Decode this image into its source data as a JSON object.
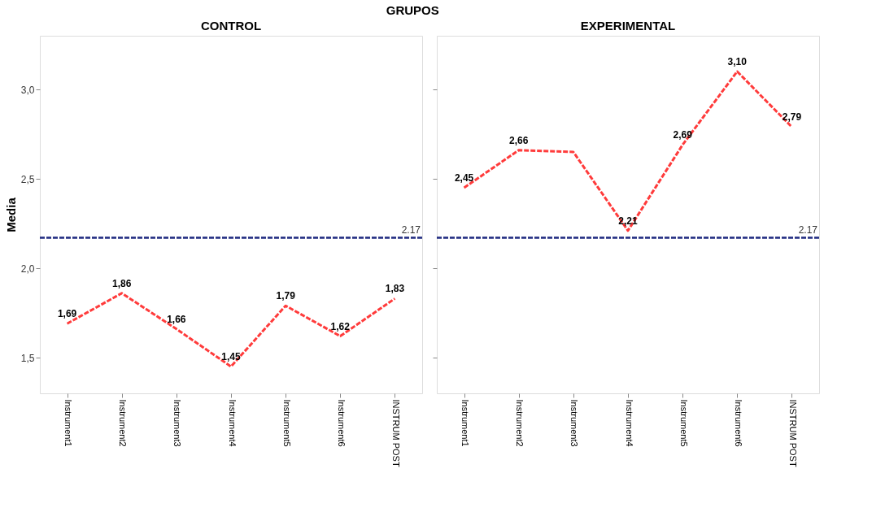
{
  "chart_data": [
    {
      "type": "line",
      "title": "CONTROL",
      "annotations": [
        "GRUPOS"
      ],
      "ylabel": "Media",
      "categories": [
        "Instrument1",
        "Instrument2",
        "Instrument3",
        "Instrument4",
        "Instrument5",
        "Instrument6",
        "INSTRUM POST"
      ],
      "series": [
        {
          "color": "#ff3b3b",
          "values": [
            1.69,
            1.86,
            1.66,
            1.45,
            1.79,
            1.62,
            1.83
          ],
          "value_labels": [
            "1,69",
            "1,86",
            "1,66",
            "1,45",
            "1,79",
            "1,62",
            "1,83"
          ]
        }
      ],
      "ylim": [
        1.3,
        3.3
      ],
      "yticks": [
        {
          "value": 1.5,
          "label": "1,5"
        },
        {
          "value": 2.0,
          "label": "2,0"
        },
        {
          "value": 2.5,
          "label": "2,5"
        },
        {
          "value": 3.0,
          "label": "3,0"
        }
      ],
      "ref_lines": [
        {
          "axis": "y",
          "value": 2.17,
          "label": "2.17",
          "color": "#1f2a80",
          "line_style": "dashed"
        }
      ],
      "grid": false,
      "marker": "none",
      "line_style": "dashed"
    },
    {
      "type": "line",
      "title": "EXPERIMENTAL",
      "categories": [
        "Instrument1",
        "Instrument2",
        "Instrument3",
        "Instrument4",
        "Instrument5",
        "Instrument6",
        "INSTRUM POST"
      ],
      "series": [
        {
          "color": "#ff3b3b",
          "values": [
            2.45,
            2.66,
            2.65,
            2.21,
            2.69,
            3.1,
            2.79
          ],
          "value_labels": [
            "2,45",
            "2,66",
            null,
            "2,21",
            "2,69",
            "3,10",
            "2,79"
          ]
        }
      ],
      "ylim": [
        1.3,
        3.3
      ],
      "yticks": [
        1.5,
        2.0,
        2.5,
        3.0
      ],
      "ref_lines": [
        {
          "axis": "y",
          "value": 2.17,
          "label": "2.17",
          "color": "#1f2a80",
          "line_style": "dashed"
        }
      ],
      "grid": false,
      "marker": "none",
      "line_style": "dashed",
      "tick_labels": "x"
    }
  ]
}
